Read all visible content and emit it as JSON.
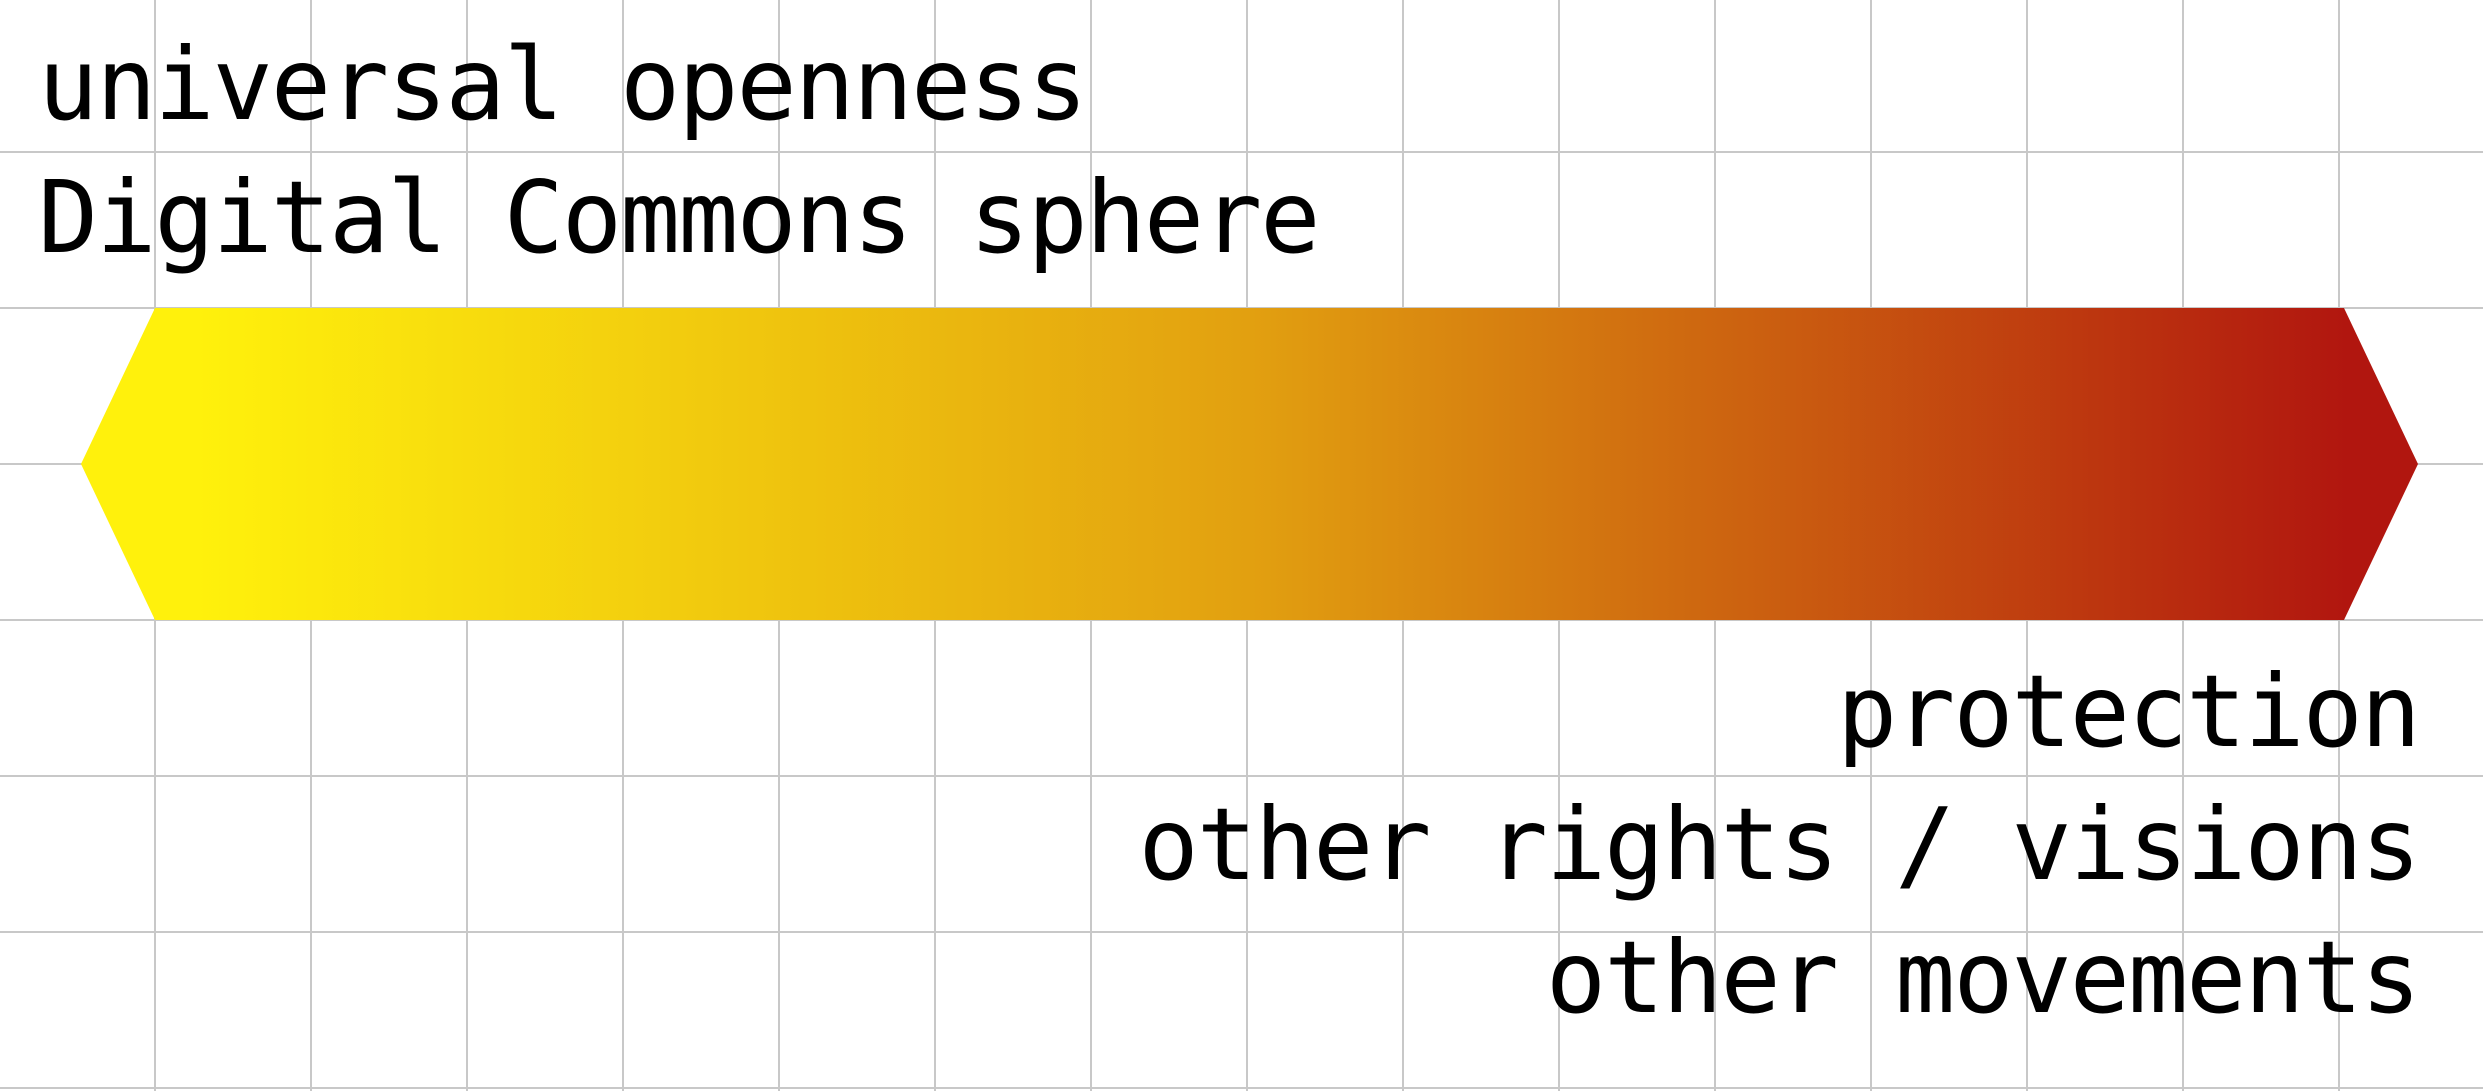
{
  "colors": {
    "background": "#ffffff",
    "grid_line": "#c8c8c8",
    "text": "#000000",
    "gradient_start": "#fff10c",
    "gradient_mid": "#e2a010",
    "gradient_end": "#b1160f"
  },
  "left_pole": {
    "line1": "universal openness",
    "line2": "Digital Commons sphere"
  },
  "right_pole": {
    "line1": "protection",
    "line2": "other rights / visions",
    "line3": "other movements"
  }
}
